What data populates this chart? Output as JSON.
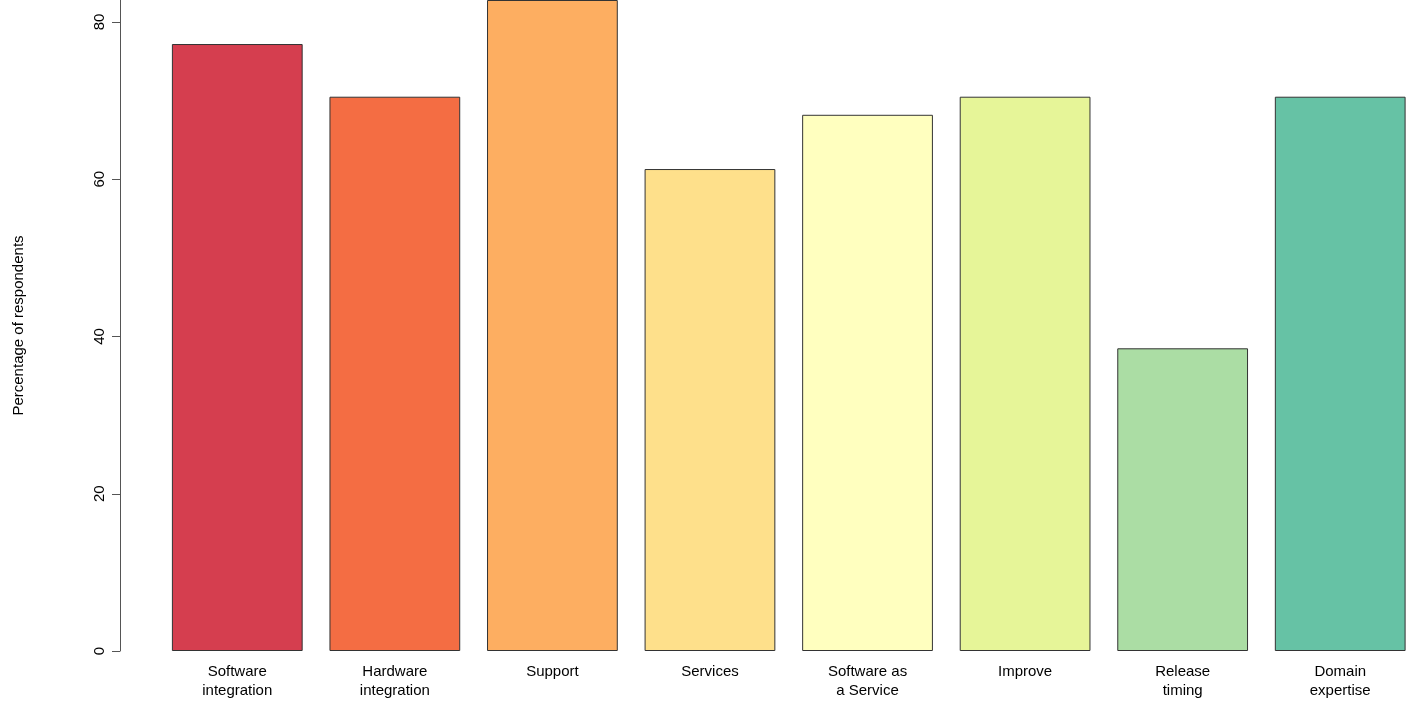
{
  "chart_data": {
    "type": "bar",
    "ylabel": "Percentage of respondents",
    "categories": [
      "Software\nintegration",
      "Hardware\nintegration",
      "Support",
      "Services",
      "Software as\na Service",
      "Improve",
      "Release\ntiming",
      "Domain\nexpertise"
    ],
    "values": [
      77.2,
      70.5,
      82.8,
      61.3,
      68.2,
      70.5,
      38.5,
      70.5
    ],
    "colors": [
      "#d53e4f",
      "#f46d43",
      "#fdae61",
      "#fee08b",
      "#ffffbf",
      "#e6f598",
      "#abdda4",
      "#66c2a5"
    ],
    "ylim": [
      0,
      82.8
    ],
    "yticks": [
      0,
      20,
      40,
      60,
      80
    ],
    "grid": false
  }
}
